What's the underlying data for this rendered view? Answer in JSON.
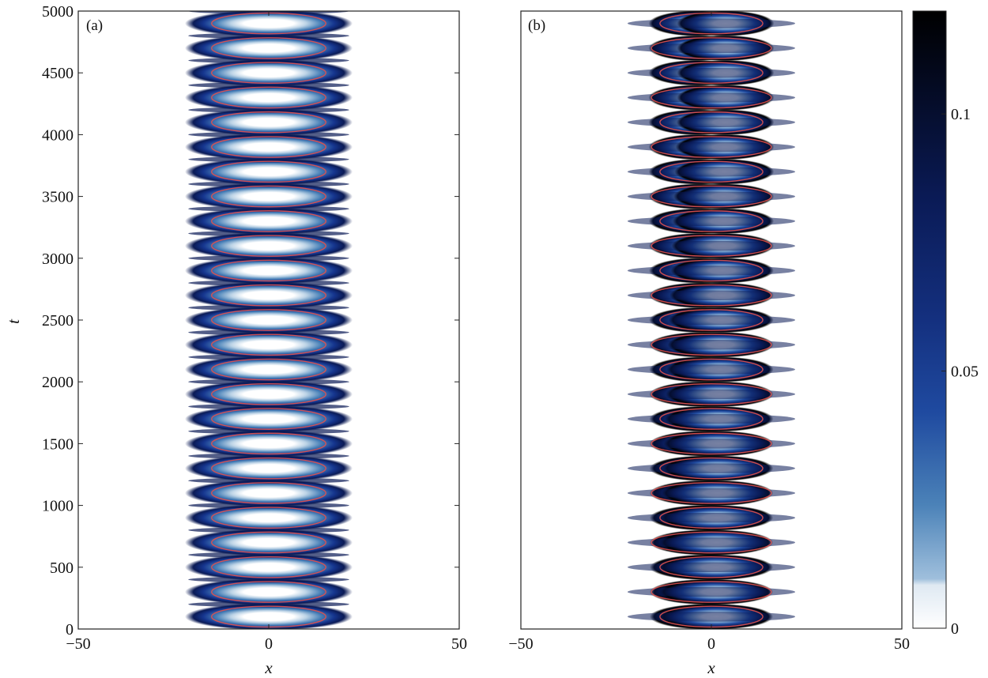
{
  "chart_data": {
    "type": "heatmap",
    "panels": [
      {
        "label": "(a)",
        "xlabel": "x",
        "ylabel": "t",
        "xlim": [
          -50,
          50
        ],
        "ylim": [
          0,
          5000
        ],
        "xticks": [
          -50,
          0,
          50
        ],
        "yticks": [
          0,
          500,
          1000,
          1500,
          2000,
          2500,
          3000,
          3500,
          4000,
          4500,
          5000
        ],
        "band_period_t": 200,
        "envelope_half_width_x": 22,
        "contour_half_width_x": 15,
        "splitting": false
      },
      {
        "label": "(b)",
        "xlabel": "x",
        "ylabel": "",
        "xlim": [
          -50,
          50
        ],
        "ylim": [
          0,
          5000
        ],
        "xticks": [
          -50,
          0,
          50
        ],
        "yticks": [],
        "band_period_t": 200,
        "envelope_half_width_x": 22,
        "contour_half_width_x": 15,
        "splitting": true
      }
    ],
    "colorbar": {
      "min": 0,
      "max": 0.12,
      "ticks": [
        0,
        0.05,
        0.1
      ],
      "tick_labels": [
        "0",
        "0.05",
        "0.1"
      ],
      "colors": [
        "#ffffff",
        "#bcd3e6",
        "#4b82b8",
        "#16368f",
        "#0a1a55",
        "#000000"
      ]
    },
    "contour_color": "#e0524f"
  }
}
